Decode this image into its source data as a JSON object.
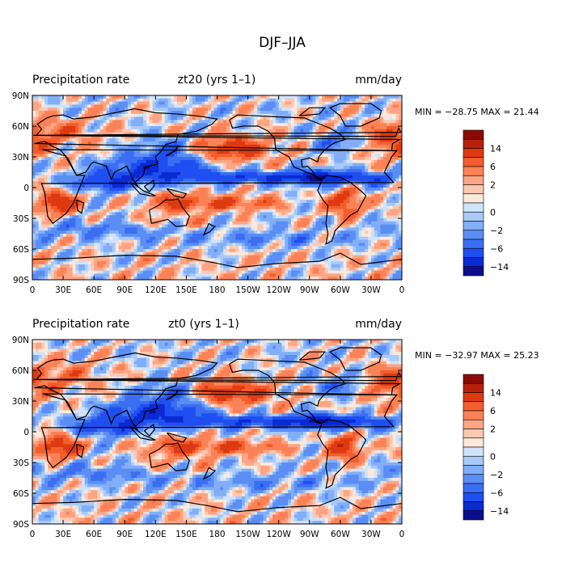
{
  "figure_title": "DJF–JJA",
  "colorbar": {
    "colors": [
      "#0d0d8c",
      "#0a2ad2",
      "#1f4ff0",
      "#3c6ef2",
      "#5a8ef5",
      "#82aef7",
      "#a8caf9",
      "#cfe4fb",
      "#fde9dc",
      "#fdc8b2",
      "#fca584",
      "#fb8257",
      "#f45d2d",
      "#de3a12",
      "#b9200b",
      "#8c0a06"
    ],
    "labels": [
      "14",
      "6",
      "2",
      "0",
      "−2",
      "−6",
      "−14"
    ]
  },
  "colorscale": {
    "levels": [
      -14,
      -10,
      -6,
      -4,
      -2,
      -1,
      -0.5,
      0,
      0.5,
      1,
      2,
      4,
      6,
      10,
      14
    ]
  },
  "land_fill": "none",
  "panels": [
    {
      "id": "top",
      "left_title": "Precipitation rate",
      "center_title": "zt20 (yrs 1–1)",
      "right_title": "mm/day",
      "min_max": "MIN = −28.75 MAX =  21.44",
      "lat_labels": [
        "90N",
        "60N",
        "30N",
        "0",
        "30S",
        "60S",
        "90S"
      ],
      "lon_labels": [
        "0",
        "30E",
        "60E",
        "90E",
        "120E",
        "150E",
        "180",
        "150W",
        "120W",
        "90W",
        "60W",
        "30W",
        "0"
      ],
      "seed": 7
    },
    {
      "id": "bottom",
      "left_title": "Precipitation rate",
      "center_title": "zt0 (yrs 1–1)",
      "right_title": "mm/day",
      "min_max": "MIN = −32.97 MAX =  25.23",
      "lat_labels": [
        "90N",
        "60N",
        "30N",
        "0",
        "30S",
        "60S",
        "90S"
      ],
      "lon_labels": [
        "0",
        "30E",
        "60E",
        "90E",
        "120E",
        "150E",
        "180",
        "150W",
        "120W",
        "90W",
        "60W",
        "30W",
        "0"
      ],
      "seed": 13
    }
  ]
}
